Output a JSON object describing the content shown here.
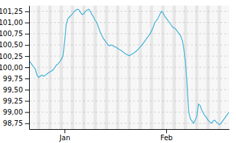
{
  "chart_data": {
    "type": "line",
    "categories": [
      null,
      null,
      null,
      null,
      null,
      null,
      null,
      null,
      null,
      null,
      null,
      null,
      null,
      null,
      null,
      null,
      null,
      null,
      null,
      null,
      null,
      null,
      "Jan",
      null,
      null,
      null,
      null,
      null,
      null,
      null,
      null,
      null,
      null,
      null,
      null,
      null,
      null,
      null,
      null,
      null,
      null,
      null,
      null,
      null,
      null,
      null,
      null,
      null,
      null,
      null,
      null,
      null,
      null,
      null,
      null,
      null,
      null,
      null,
      null,
      null,
      null,
      null,
      null,
      null,
      null,
      null,
      null,
      null,
      null,
      null,
      null,
      null,
      null,
      null,
      null,
      null,
      null,
      null,
      null,
      null,
      null,
      null,
      null,
      null,
      null,
      "Feb",
      null,
      null,
      null,
      null,
      null,
      null,
      null,
      null,
      null,
      null,
      null,
      null,
      null,
      null,
      null,
      null,
      null,
      null,
      null,
      null,
      null,
      null,
      null,
      null,
      null,
      null,
      null,
      null,
      null,
      null,
      null,
      null,
      null,
      null,
      null,
      null,
      null,
      null,
      null
    ],
    "values": [
      100.15,
      100.1,
      100.05,
      100.0,
      99.95,
      99.82,
      99.78,
      99.8,
      99.83,
      99.8,
      99.82,
      99.85,
      99.88,
      99.9,
      99.92,
      99.95,
      100.0,
      100.05,
      100.08,
      100.12,
      100.18,
      100.25,
      100.55,
      100.95,
      101.08,
      101.12,
      101.16,
      101.2,
      101.25,
      101.28,
      101.3,
      101.28,
      101.22,
      101.18,
      101.2,
      101.25,
      101.28,
      101.3,
      101.25,
      101.18,
      101.12,
      101.05,
      101.0,
      100.9,
      100.8,
      100.72,
      100.65,
      100.6,
      100.55,
      100.5,
      100.48,
      100.5,
      100.48,
      100.46,
      100.45,
      100.42,
      100.4,
      100.38,
      100.35,
      100.32,
      100.3,
      100.28,
      100.26,
      100.28,
      100.3,
      100.32,
      100.35,
      100.38,
      100.42,
      100.46,
      100.5,
      100.55,
      100.6,
      100.65,
      100.7,
      100.75,
      100.82,
      100.9,
      101.0,
      101.05,
      101.1,
      101.18,
      101.25,
      101.22,
      101.15,
      101.1,
      101.05,
      101.0,
      100.95,
      100.9,
      100.88,
      100.85,
      100.8,
      100.75,
      100.7,
      100.6,
      100.4,
      100.1,
      99.6,
      99.0,
      98.85,
      98.8,
      98.75,
      98.82,
      98.9,
      99.18,
      99.15,
      99.05,
      98.98,
      98.92,
      98.88,
      98.82,
      98.78,
      98.75,
      98.8,
      98.82,
      98.78,
      98.75,
      98.72,
      98.75,
      98.8,
      98.85,
      98.9,
      98.95,
      99.0
    ],
    "color": "#3ab0d8",
    "ylim": [
      98.62,
      101.38
    ],
    "yticks": [
      {
        "value": 98.75,
        "label": "98,75"
      },
      {
        "value": 99.0,
        "label": "99,00"
      },
      {
        "value": 99.25,
        "label": "99,25"
      },
      {
        "value": 99.5,
        "label": "99,50"
      },
      {
        "value": 99.75,
        "label": "99,75"
      },
      {
        "value": 100.0,
        "label": "100,00"
      },
      {
        "value": 100.25,
        "label": "100,25"
      },
      {
        "value": 100.5,
        "label": "100,50"
      },
      {
        "value": 100.75,
        "label": "100,75"
      },
      {
        "value": 101.0,
        "label": "101,00"
      },
      {
        "value": 101.25,
        "label": "101,25"
      }
    ],
    "grid": true
  }
}
